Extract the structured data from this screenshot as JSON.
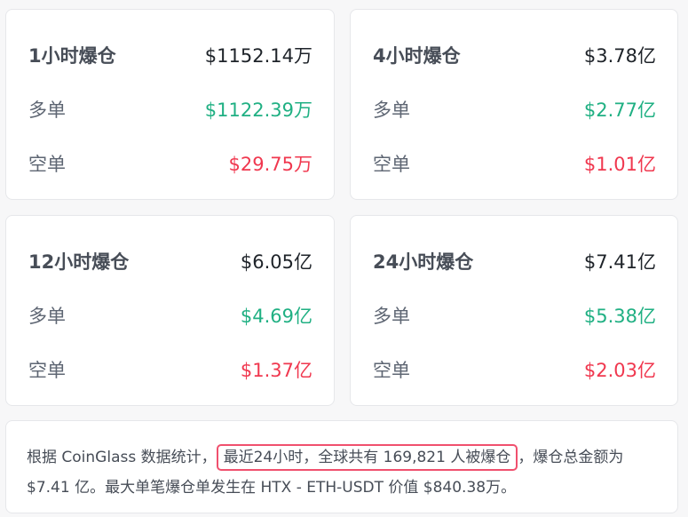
{
  "cards": [
    {
      "title": "1小时爆仓",
      "total": "$1152.14万",
      "long_label": "多单",
      "long": "$1122.39万",
      "short_label": "空单",
      "short": "$29.75万"
    },
    {
      "title": "4小时爆仓",
      "total": "$3.78亿",
      "long_label": "多单",
      "long": "$2.77亿",
      "short_label": "空单",
      "short": "$1.01亿"
    },
    {
      "title": "12小时爆仓",
      "total": "$6.05亿",
      "long_label": "多单",
      "long": "$4.69亿",
      "short_label": "空单",
      "short": "$1.37亿"
    },
    {
      "title": "24小时爆仓",
      "total": "$7.41亿",
      "long_label": "多单",
      "long": "$5.38亿",
      "short_label": "空单",
      "short": "$2.03亿"
    }
  ],
  "summary": {
    "prefix": "根据 CoinGlass 数据统计，",
    "highlight": "最近24小时，全球共有 169,821 人被爆仓",
    "suffix": "，爆仓总金额为 $7.41 亿。最大单笔爆仓单发生在 HTX - ETH-USDT 价值 $840.38万。"
  },
  "colors": {
    "long": "#20b083",
    "short": "#f0384f",
    "highlight_border": "#f0506e"
  }
}
